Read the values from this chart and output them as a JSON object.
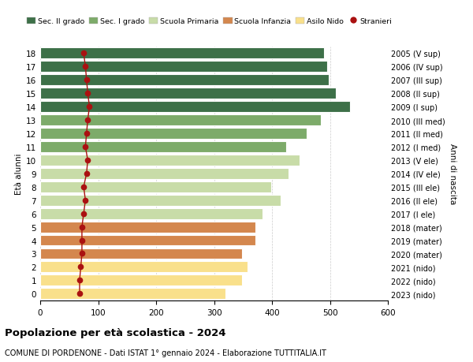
{
  "ages": [
    0,
    1,
    2,
    3,
    4,
    5,
    6,
    7,
    8,
    9,
    10,
    11,
    12,
    13,
    14,
    15,
    16,
    17,
    18
  ],
  "anni_nascita": [
    "2023 (nido)",
    "2022 (nido)",
    "2021 (nido)",
    "2020 (mater)",
    "2019 (mater)",
    "2018 (mater)",
    "2017 (I ele)",
    "2016 (II ele)",
    "2015 (III ele)",
    "2014 (IV ele)",
    "2013 (V ele)",
    "2012 (I med)",
    "2011 (II med)",
    "2010 (III med)",
    "2009 (I sup)",
    "2008 (II sup)",
    "2007 (III sup)",
    "2006 (IV sup)",
    "2005 (V sup)"
  ],
  "bar_values": [
    320,
    348,
    358,
    348,
    372,
    372,
    383,
    415,
    398,
    428,
    448,
    425,
    460,
    485,
    535,
    510,
    498,
    495,
    490
  ],
  "stranieri": [
    68,
    68,
    70,
    72,
    72,
    72,
    75,
    78,
    75,
    80,
    82,
    78,
    80,
    82,
    85,
    82,
    80,
    78,
    75
  ],
  "age_colors": [
    "#F9E08B",
    "#F9E08B",
    "#F9E08B",
    "#D4874E",
    "#D4874E",
    "#D4874E",
    "#C8DCA8",
    "#C8DCA8",
    "#C8DCA8",
    "#C8DCA8",
    "#C8DCA8",
    "#7DAB6A",
    "#7DAB6A",
    "#7DAB6A",
    "#3D7048",
    "#3D7048",
    "#3D7048",
    "#3D7048",
    "#3D7048"
  ],
  "stranieri_color": "#AA1111",
  "legend_labels": [
    "Sec. II grado",
    "Sec. I grado",
    "Scuola Primaria",
    "Scuola Infanzia",
    "Asilo Nido",
    "Stranieri"
  ],
  "legend_colors": [
    "#3D7048",
    "#7DAB6A",
    "#C8DCA8",
    "#D4874E",
    "#F9E08B",
    "#AA1111"
  ],
  "title": "Popolazione per età scolastica - 2024",
  "subtitle": "COMUNE DI PORDENONE - Dati ISTAT 1° gennaio 2024 - Elaborazione TUTTITALIA.IT",
  "ylabel": "Età alunni",
  "ylabel2": "Anni di nascita",
  "bg_color": "#FFFFFF",
  "grid_color": "#CCCCCC",
  "bar_edgecolor": "#FFFFFF",
  "bar_height": 0.82
}
